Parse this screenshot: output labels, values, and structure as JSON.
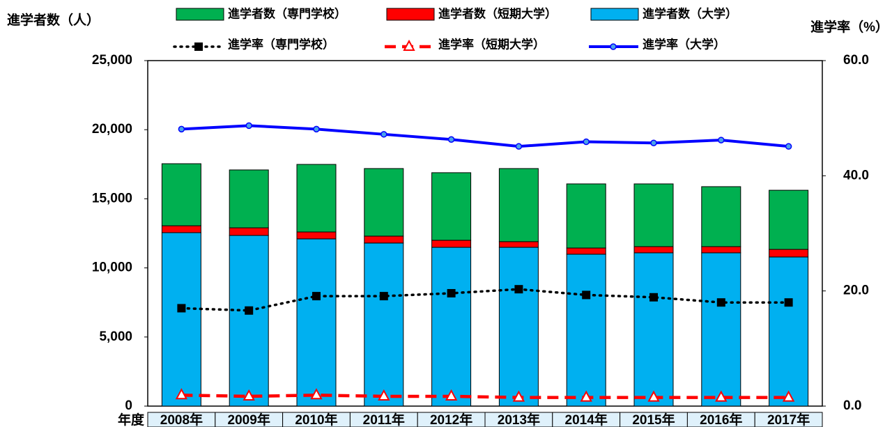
{
  "chart_data": {
    "type": "bar",
    "ylabel": "進学者数（人）",
    "y2label": "進学率（%）",
    "xlabel": "年度",
    "categories": [
      "2008年",
      "2009年",
      "2010年",
      "2011年",
      "2012年",
      "2013年",
      "2014年",
      "2015年",
      "2016年",
      "2017年"
    ],
    "ylim": [
      0,
      25000
    ],
    "yticks": [
      0,
      {
        "value": 5000,
        "label": "5,000"
      },
      {
        "value": 10000,
        "label": "10,000"
      },
      {
        "value": 15000,
        "label": "15,000"
      },
      {
        "value": 20000,
        "label": "20,000"
      },
      {
        "value": 25000,
        "label": "25,000"
      }
    ],
    "y2lim": [
      0,
      60
    ],
    "y2ticks": [
      {
        "value": 0,
        "label": "0.0"
      },
      {
        "value": 20,
        "label": "20.0"
      },
      {
        "value": 40,
        "label": "40.0"
      },
      {
        "value": 60,
        "label": "60.0"
      }
    ],
    "series": [
      {
        "name": "進学者数（専門学校）",
        "type": "bar",
        "color": "#00b050",
        "values": [
          4490,
          4190,
          4890,
          4890,
          4890,
          5290,
          4640,
          4540,
          4340,
          4280
        ]
      },
      {
        "name": "進学者数（短期大学）",
        "type": "bar",
        "color": "#ff0000",
        "values": [
          500,
          550,
          500,
          500,
          510,
          410,
          450,
          450,
          450,
          550
        ]
      },
      {
        "name": "進学者数（大学）",
        "type": "bar",
        "color": "#00b0f0",
        "values": [
          12550,
          12350,
          12100,
          11800,
          11490,
          11490,
          10990,
          11090,
          11090,
          10790
        ]
      },
      {
        "name": "進学率（専門学校）",
        "type": "line",
        "axis": "y2",
        "color": "#000000",
        "dash": "dotted",
        "marker": "square",
        "values": [
          17.0,
          16.6,
          19.1,
          19.1,
          19.6,
          20.3,
          19.3,
          18.9,
          18.0,
          18.0
        ]
      },
      {
        "name": "進学率（短期大学）",
        "type": "line",
        "axis": "y2",
        "color": "#ff0000",
        "dash": "dashed",
        "marker": "triangle",
        "values": [
          1.9,
          1.7,
          1.9,
          1.7,
          1.7,
          1.5,
          1.5,
          1.5,
          1.5,
          1.5
        ]
      },
      {
        "name": "進学率（大学）",
        "type": "line",
        "axis": "y2",
        "color": "#0000ff",
        "dash": "solid",
        "marker": "circle",
        "values": [
          48.1,
          48.7,
          48.1,
          47.2,
          46.3,
          45.1,
          45.9,
          45.7,
          46.2,
          45.1
        ]
      }
    ]
  }
}
